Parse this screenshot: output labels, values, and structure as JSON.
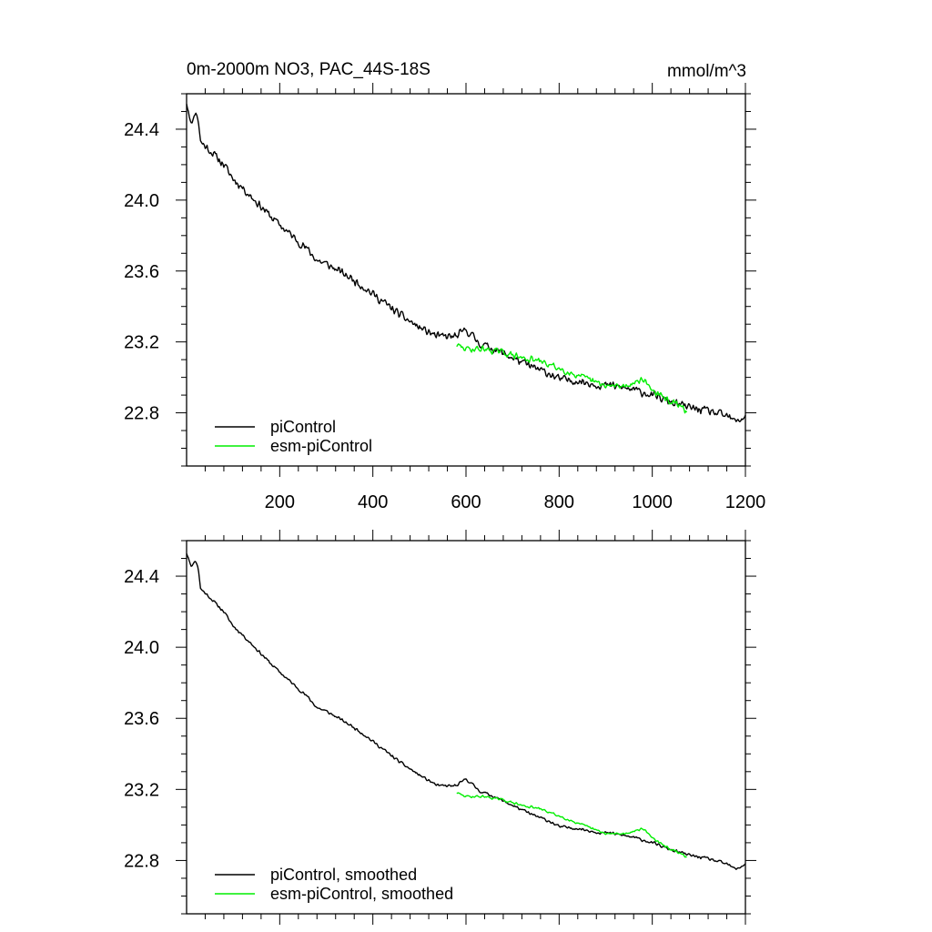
{
  "colors": {
    "piControl": "#000000",
    "esm_piControl": "#00ee00"
  },
  "chart_data": [
    {
      "type": "line",
      "title": "0m-2000m NO3, PAC_44S-18S",
      "units": "mmol/m^3",
      "xlim": [
        0,
        1200
      ],
      "ylim": [
        22.5,
        24.6
      ],
      "x_ticks": [
        200,
        400,
        600,
        800,
        1000,
        1200
      ],
      "x_tick_labels": [
        "200",
        "400",
        "600",
        "800",
        "1000",
        "1200"
      ],
      "y_ticks": [
        22.8,
        23.2,
        23.6,
        24.0,
        24.4
      ],
      "y_tick_labels": [
        "22.8",
        "23.2",
        "23.6",
        "24.0",
        "24.4"
      ],
      "legend_position": "bottom-left",
      "series": [
        {
          "name": "piControl",
          "color": "#000000",
          "noise": 0.028,
          "seed": 11,
          "points": [
            [
              0,
              24.55
            ],
            [
              5,
              24.5
            ],
            [
              10,
              24.42
            ],
            [
              18,
              24.5
            ],
            [
              25,
              24.46
            ],
            [
              30,
              24.33
            ],
            [
              50,
              24.28
            ],
            [
              80,
              24.2
            ],
            [
              100,
              24.12
            ],
            [
              120,
              24.07
            ],
            [
              150,
              23.99
            ],
            [
              180,
              23.91
            ],
            [
              200,
              23.86
            ],
            [
              230,
              23.79
            ],
            [
              260,
              23.72
            ],
            [
              280,
              23.66
            ],
            [
              300,
              23.64
            ],
            [
              340,
              23.58
            ],
            [
              370,
              23.53
            ],
            [
              400,
              23.47
            ],
            [
              420,
              23.43
            ],
            [
              460,
              23.35
            ],
            [
              500,
              23.28
            ],
            [
              540,
              23.23
            ],
            [
              580,
              23.23
            ],
            [
              600,
              23.27
            ],
            [
              630,
              23.19
            ],
            [
              660,
              23.16
            ],
            [
              700,
              23.11
            ],
            [
              740,
              23.06
            ],
            [
              780,
              23.02
            ],
            [
              800,
              22.99
            ],
            [
              840,
              22.98
            ],
            [
              880,
              22.96
            ],
            [
              920,
              22.95
            ],
            [
              960,
              22.93
            ],
            [
              1000,
              22.9
            ],
            [
              1040,
              22.86
            ],
            [
              1080,
              22.83
            ],
            [
              1120,
              22.81
            ],
            [
              1160,
              22.78
            ],
            [
              1180,
              22.75
            ],
            [
              1200,
              22.78
            ]
          ]
        },
        {
          "name": "esm-piControl",
          "color": "#00ee00",
          "noise": 0.022,
          "seed": 29,
          "points": [
            [
              580,
              23.18
            ],
            [
              600,
              23.16
            ],
            [
              640,
              23.16
            ],
            [
              680,
              23.14
            ],
            [
              720,
              23.11
            ],
            [
              760,
              23.09
            ],
            [
              800,
              23.05
            ],
            [
              840,
              23.01
            ],
            [
              870,
              22.98
            ],
            [
              900,
              22.95
            ],
            [
              940,
              22.95
            ],
            [
              980,
              22.99
            ],
            [
              1000,
              22.93
            ],
            [
              1020,
              22.89
            ],
            [
              1050,
              22.85
            ],
            [
              1075,
              22.81
            ]
          ]
        }
      ]
    },
    {
      "type": "line",
      "title": "",
      "units": "",
      "xlim": [
        0,
        1200
      ],
      "ylim": [
        22.5,
        24.6
      ],
      "x_ticks": [
        200,
        400,
        600,
        800,
        1000,
        1200
      ],
      "x_tick_labels": [],
      "y_ticks": [
        22.8,
        23.2,
        23.6,
        24.0,
        24.4
      ],
      "y_tick_labels": [
        "22.8",
        "23.2",
        "23.6",
        "24.0",
        "24.4"
      ],
      "legend_position": "bottom-left",
      "series": [
        {
          "name": "piControl, smoothed",
          "color": "#000000",
          "noise": 0.01,
          "seed": 11,
          "points": [
            [
              0,
              24.53
            ],
            [
              5,
              24.5
            ],
            [
              10,
              24.45
            ],
            [
              18,
              24.49
            ],
            [
              25,
              24.45
            ],
            [
              30,
              24.33
            ],
            [
              50,
              24.28
            ],
            [
              80,
              24.2
            ],
            [
              100,
              24.12
            ],
            [
              120,
              24.07
            ],
            [
              150,
              23.99
            ],
            [
              180,
              23.91
            ],
            [
              200,
              23.86
            ],
            [
              230,
              23.79
            ],
            [
              260,
              23.72
            ],
            [
              280,
              23.66
            ],
            [
              300,
              23.64
            ],
            [
              340,
              23.58
            ],
            [
              370,
              23.53
            ],
            [
              400,
              23.47
            ],
            [
              420,
              23.43
            ],
            [
              460,
              23.35
            ],
            [
              500,
              23.28
            ],
            [
              540,
              23.22
            ],
            [
              580,
              23.22
            ],
            [
              600,
              23.26
            ],
            [
              630,
              23.19
            ],
            [
              660,
              23.16
            ],
            [
              700,
              23.11
            ],
            [
              740,
              23.06
            ],
            [
              780,
              23.02
            ],
            [
              800,
              22.99
            ],
            [
              840,
              22.98
            ],
            [
              880,
              22.96
            ],
            [
              920,
              22.95
            ],
            [
              960,
              22.93
            ],
            [
              1000,
              22.9
            ],
            [
              1040,
              22.86
            ],
            [
              1080,
              22.83
            ],
            [
              1120,
              22.81
            ],
            [
              1160,
              22.78
            ],
            [
              1180,
              22.75
            ],
            [
              1200,
              22.78
            ]
          ]
        },
        {
          "name": "esm-piControl, smoothed",
          "color": "#00ee00",
          "noise": 0.008,
          "seed": 29,
          "points": [
            [
              580,
              23.18
            ],
            [
              600,
              23.16
            ],
            [
              640,
              23.16
            ],
            [
              680,
              23.14
            ],
            [
              720,
              23.11
            ],
            [
              760,
              23.09
            ],
            [
              800,
              23.05
            ],
            [
              840,
              23.01
            ],
            [
              870,
              22.98
            ],
            [
              900,
              22.95
            ],
            [
              940,
              22.95
            ],
            [
              980,
              22.98
            ],
            [
              1000,
              22.93
            ],
            [
              1020,
              22.89
            ],
            [
              1050,
              22.85
            ],
            [
              1075,
              22.82
            ]
          ]
        }
      ]
    }
  ]
}
